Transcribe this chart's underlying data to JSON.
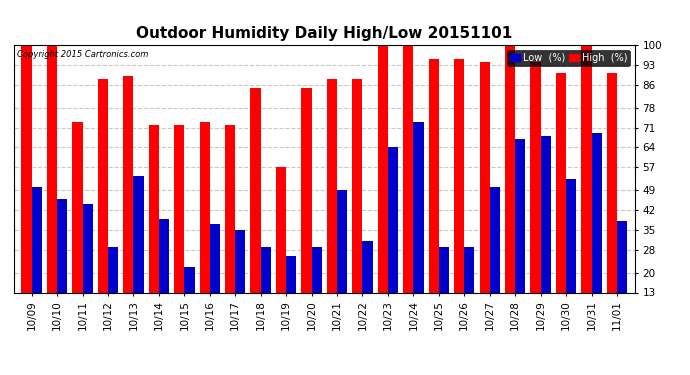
{
  "title": "Outdoor Humidity Daily High/Low 20151101",
  "copyright": "Copyright 2015 Cartronics.com",
  "dates": [
    "10/09",
    "10/10",
    "10/11",
    "10/12",
    "10/13",
    "10/14",
    "10/15",
    "10/16",
    "10/17",
    "10/18",
    "10/19",
    "10/20",
    "10/21",
    "10/22",
    "10/23",
    "10/24",
    "10/25",
    "10/26",
    "10/27",
    "10/28",
    "10/29",
    "10/30",
    "10/31",
    "11/01"
  ],
  "high": [
    100,
    100,
    73,
    88,
    89,
    72,
    72,
    73,
    72,
    85,
    57,
    85,
    88,
    88,
    100,
    100,
    95,
    95,
    94,
    100,
    94,
    90,
    100,
    90
  ],
  "low": [
    50,
    46,
    44,
    29,
    54,
    39,
    22,
    37,
    35,
    29,
    26,
    29,
    49,
    31,
    64,
    73,
    29,
    29,
    50,
    67,
    68,
    53,
    69,
    38
  ],
  "ylim_min": 13,
  "ylim_max": 100,
  "yticks": [
    13,
    20,
    28,
    35,
    42,
    49,
    57,
    64,
    71,
    78,
    86,
    93,
    100
  ],
  "high_color": "#FF0000",
  "low_color": "#0000CC",
  "bg_color": "#FFFFFF",
  "grid_color": "#C8C8C8",
  "title_fontsize": 11,
  "tick_fontsize": 7.5
}
